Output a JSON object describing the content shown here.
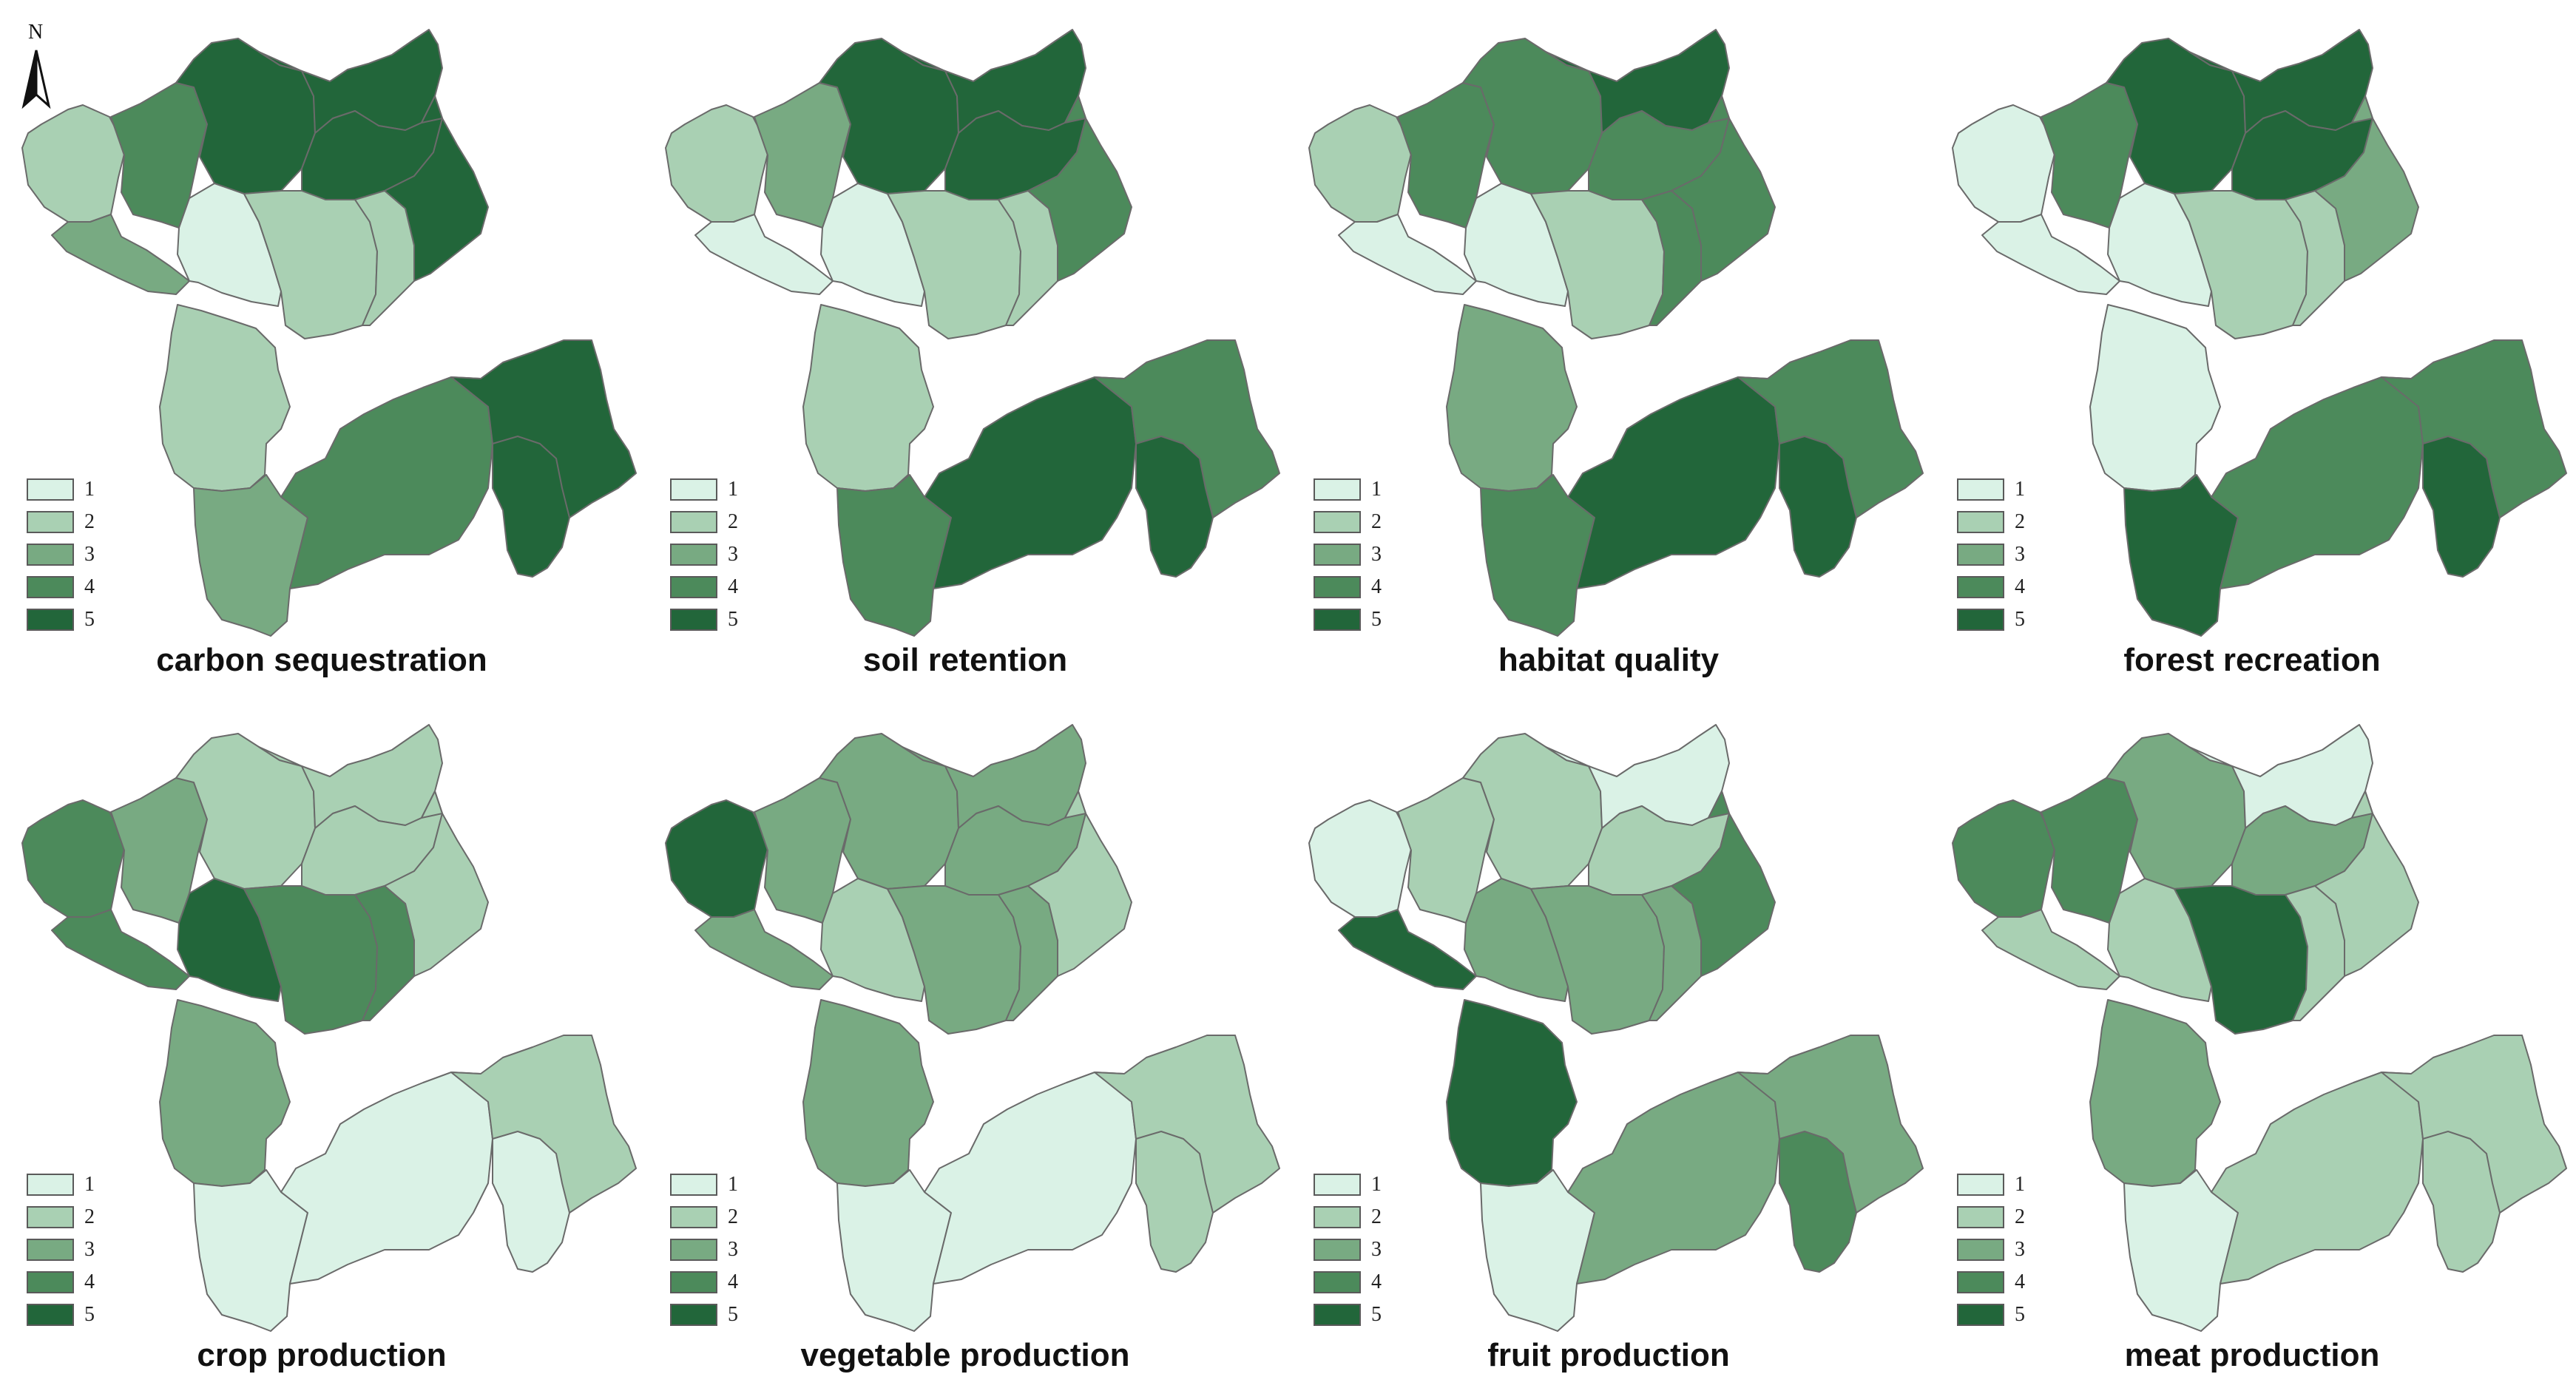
{
  "palette": {
    "1": "#daf2e6",
    "2": "#a9d0b3",
    "3": "#78aa82",
    "4": "#4c8a5b",
    "5": "#22663a"
  },
  "north_arrow": {
    "label": "N",
    "icon": "north-arrow-icon"
  },
  "legend_levels": [
    "1",
    "2",
    "3",
    "4",
    "5"
  ],
  "panels": [
    {
      "key": "carbon",
      "title": "carbon sequestration",
      "levels": {
        "A": 2,
        "B": 4,
        "C": 5,
        "D": 5,
        "E": 5,
        "F": 5,
        "G": 3,
        "H": 1,
        "I": 2,
        "J": 2,
        "K": 2,
        "L": 3,
        "M": 4,
        "N": 5,
        "O": 5
      }
    },
    {
      "key": "soil",
      "title": "soil retention",
      "levels": {
        "A": 2,
        "B": 3,
        "C": 5,
        "D": 5,
        "E": 5,
        "F": 4,
        "G": 1,
        "H": 1,
        "I": 2,
        "J": 2,
        "K": 2,
        "L": 4,
        "M": 5,
        "N": 4,
        "O": 5
      }
    },
    {
      "key": "habitat",
      "title": "habitat quality",
      "levels": {
        "A": 2,
        "B": 4,
        "C": 4,
        "D": 5,
        "E": 4,
        "F": 4,
        "G": 1,
        "H": 1,
        "I": 2,
        "J": 4,
        "K": 3,
        "L": 4,
        "M": 5,
        "N": 4,
        "O": 5
      }
    },
    {
      "key": "forest",
      "title": "forest recreation",
      "levels": {
        "A": 1,
        "B": 4,
        "C": 5,
        "D": 5,
        "E": 5,
        "F": 3,
        "G": 1,
        "H": 1,
        "I": 2,
        "J": 2,
        "K": 1,
        "L": 5,
        "M": 4,
        "N": 4,
        "O": 5
      }
    },
    {
      "key": "crop",
      "title": "crop production",
      "levels": {
        "A": 4,
        "B": 3,
        "C": 2,
        "D": 2,
        "E": 2,
        "F": 2,
        "G": 4,
        "H": 5,
        "I": 4,
        "J": 4,
        "K": 3,
        "L": 1,
        "M": 1,
        "N": 2,
        "O": 1
      }
    },
    {
      "key": "vegetable",
      "title": "vegetable production",
      "levels": {
        "A": 5,
        "B": 3,
        "C": 3,
        "D": 3,
        "E": 3,
        "F": 2,
        "G": 3,
        "H": 2,
        "I": 3,
        "J": 3,
        "K": 3,
        "L": 1,
        "M": 1,
        "N": 2,
        "O": 2
      }
    },
    {
      "key": "fruit",
      "title": "fruit production",
      "levels": {
        "A": 1,
        "B": 2,
        "C": 2,
        "D": 1,
        "E": 2,
        "F": 4,
        "G": 5,
        "H": 3,
        "I": 3,
        "J": 3,
        "K": 5,
        "L": 1,
        "M": 3,
        "N": 3,
        "O": 4
      }
    },
    {
      "key": "meat",
      "title": "meat production",
      "levels": {
        "A": 4,
        "B": 4,
        "C": 3,
        "D": 1,
        "E": 3,
        "F": 2,
        "G": 2,
        "H": 2,
        "I": 5,
        "J": 2,
        "K": 3,
        "L": 1,
        "M": 2,
        "N": 2,
        "O": 2
      }
    }
  ]
}
